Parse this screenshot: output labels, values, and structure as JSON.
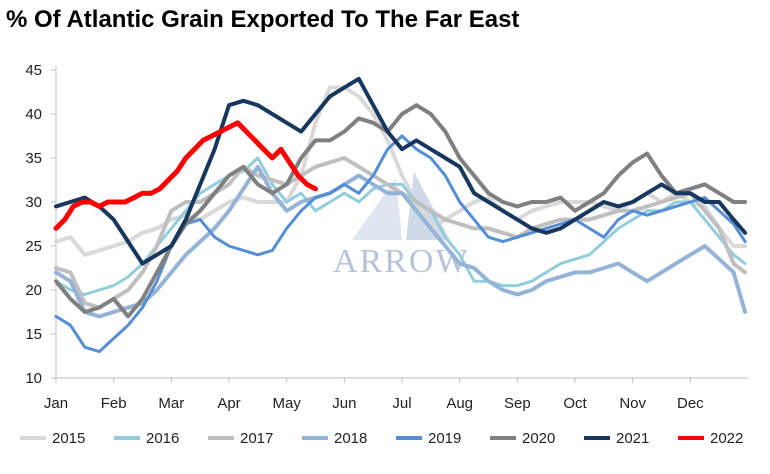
{
  "chart_data": {
    "type": "line",
    "title": "% Of Atlantic Grain Exported To The Far East",
    "xlabel": "",
    "ylabel": "",
    "categories": [
      "Jan",
      "Feb",
      "Mar",
      "Apr",
      "May",
      "Jun",
      "Jul",
      "Aug",
      "Sep",
      "Oct",
      "Nov",
      "Dec"
    ],
    "yticks": [
      10,
      15,
      20,
      25,
      30,
      35,
      40,
      45
    ],
    "ylim": [
      10,
      45
    ],
    "xlim": [
      0,
      12
    ],
    "grid": false,
    "legend_position": "bottom",
    "watermark": "ARROW",
    "series": [
      {
        "name": "2015",
        "color": "#d9d9d9",
        "width": 4,
        "x": [
          0,
          0.25,
          0.5,
          0.75,
          1,
          1.25,
          1.5,
          1.75,
          2,
          2.25,
          2.5,
          2.75,
          3,
          3.25,
          3.5,
          3.75,
          4,
          4.25,
          4.5,
          4.75,
          5,
          5.25,
          5.5,
          5.75,
          6,
          6.25,
          6.5,
          6.75,
          7,
          7.25,
          7.5,
          7.75,
          8,
          8.25,
          8.5,
          8.75,
          9,
          9.25,
          9.5,
          9.75,
          10,
          10.25,
          10.5,
          10.75,
          11,
          11.25,
          11.5,
          11.75,
          11.95
        ],
        "y": [
          25.5,
          26,
          24,
          24.5,
          25,
          25.5,
          26.5,
          27,
          28,
          28.5,
          28,
          29,
          30,
          30.5,
          30,
          30,
          30,
          33,
          39,
          43,
          43,
          42,
          40,
          37,
          33,
          30,
          27,
          28,
          29,
          30,
          30.5,
          29,
          28,
          29,
          29.5,
          30,
          30,
          30,
          29.5,
          29,
          30,
          31,
          30,
          31,
          30,
          29.5,
          27,
          25,
          25
        ]
      },
      {
        "name": "2016",
        "color": "#92cddc",
        "width": 3,
        "x": [
          0,
          0.25,
          0.5,
          0.75,
          1,
          1.25,
          1.5,
          1.75,
          2,
          2.25,
          2.5,
          2.75,
          3,
          3.25,
          3.5,
          3.75,
          4,
          4.25,
          4.5,
          4.75,
          5,
          5.25,
          5.5,
          5.75,
          6,
          6.25,
          6.5,
          6.75,
          7,
          7.25,
          7.5,
          7.75,
          8,
          8.25,
          8.5,
          8.75,
          9,
          9.25,
          9.5,
          9.75,
          10,
          10.25,
          10.5,
          10.75,
          11,
          11.25,
          11.5,
          11.75,
          11.95
        ],
        "y": [
          21,
          20,
          19.5,
          20,
          20.5,
          21.5,
          23,
          25,
          27,
          29,
          31,
          32,
          33,
          33.5,
          35,
          32,
          30,
          31,
          29,
          30,
          31,
          30,
          31.5,
          32,
          32,
          30,
          29,
          26,
          24,
          21,
          21,
          20.5,
          20.5,
          21,
          22,
          23,
          23.5,
          24,
          25.5,
          27,
          28,
          29,
          29,
          30,
          30,
          28,
          26,
          24,
          23
        ]
      },
      {
        "name": "2017",
        "color": "#bfbfbf",
        "width": 4,
        "x": [
          0,
          0.25,
          0.5,
          0.75,
          1,
          1.25,
          1.5,
          1.75,
          2,
          2.25,
          2.5,
          2.75,
          3,
          3.25,
          3.5,
          3.75,
          4,
          4.25,
          4.5,
          4.75,
          5,
          5.25,
          5.5,
          5.75,
          6,
          6.25,
          6.5,
          6.75,
          7,
          7.25,
          7.5,
          7.75,
          8,
          8.25,
          8.5,
          8.75,
          9,
          9.25,
          9.5,
          9.75,
          10,
          10.25,
          10.5,
          10.75,
          11,
          11.25,
          11.5,
          11.75,
          11.95
        ],
        "y": [
          22.5,
          22,
          18.5,
          18,
          19,
          20,
          22,
          25,
          29,
          30,
          30,
          31,
          32,
          34,
          33,
          32.5,
          32,
          33,
          34,
          34.5,
          35,
          34,
          33,
          32,
          31,
          30,
          29,
          28,
          27.5,
          27,
          27,
          26.5,
          26,
          27,
          27.5,
          28,
          28,
          28,
          28.5,
          29,
          29,
          29.5,
          30,
          30.5,
          31,
          29,
          27,
          23,
          22
        ]
      },
      {
        "name": "2018",
        "color": "#95b3d7",
        "width": 4,
        "x": [
          0,
          0.25,
          0.5,
          0.75,
          1,
          1.25,
          1.5,
          1.75,
          2,
          2.25,
          2.5,
          2.75,
          3,
          3.25,
          3.5,
          3.75,
          4,
          4.25,
          4.5,
          4.75,
          5,
          5.25,
          5.5,
          5.75,
          6,
          6.25,
          6.5,
          6.75,
          7,
          7.25,
          7.5,
          7.75,
          8,
          8.25,
          8.5,
          8.75,
          9,
          9.25,
          9.5,
          9.75,
          10,
          10.25,
          10.5,
          10.75,
          11,
          11.25,
          11.5,
          11.75,
          11.95
        ],
        "y": [
          22,
          21,
          17.5,
          17,
          17.5,
          18,
          18.5,
          20,
          22,
          24,
          25.5,
          27,
          29,
          31.5,
          34,
          31,
          29,
          30,
          30.5,
          31,
          32,
          33,
          32,
          31,
          31,
          29,
          27,
          25,
          23,
          22.5,
          21,
          20,
          19.5,
          20,
          21,
          21.5,
          22,
          22,
          22.5,
          23,
          22,
          21,
          22,
          23,
          24,
          25,
          23.5,
          22,
          17.5
        ]
      },
      {
        "name": "2019",
        "color": "#558ed5",
        "width": 3,
        "x": [
          0,
          0.25,
          0.5,
          0.75,
          1,
          1.25,
          1.5,
          1.75,
          2,
          2.25,
          2.5,
          2.75,
          3,
          3.25,
          3.5,
          3.75,
          4,
          4.25,
          4.5,
          4.75,
          5,
          5.25,
          5.5,
          5.75,
          6,
          6.25,
          6.5,
          6.75,
          7,
          7.25,
          7.5,
          7.75,
          8,
          8.25,
          8.5,
          8.75,
          9,
          9.25,
          9.5,
          9.75,
          10,
          10.25,
          10.5,
          10.75,
          11,
          11.25,
          11.5,
          11.75,
          11.95
        ],
        "y": [
          17,
          16,
          13.5,
          13,
          14.5,
          16,
          18,
          21,
          25,
          27.5,
          28,
          26,
          25,
          24.5,
          24,
          24.5,
          27,
          29,
          30.5,
          31,
          32,
          31,
          33,
          36,
          37.5,
          36,
          35,
          33,
          30,
          28,
          26,
          25.5,
          26,
          26.5,
          27,
          27.5,
          28,
          27,
          26,
          28,
          29,
          28.5,
          29,
          29.5,
          30,
          30.5,
          29,
          27.5,
          25.5
        ]
      },
      {
        "name": "2020",
        "color": "#808080",
        "width": 4,
        "x": [
          0,
          0.25,
          0.5,
          0.75,
          1,
          1.25,
          1.5,
          1.75,
          2,
          2.25,
          2.5,
          2.75,
          3,
          3.25,
          3.5,
          3.75,
          4,
          4.25,
          4.5,
          4.75,
          5,
          5.25,
          5.5,
          5.75,
          6,
          6.25,
          6.5,
          6.75,
          7,
          7.25,
          7.5,
          7.75,
          8,
          8.25,
          8.5,
          8.75,
          9,
          9.25,
          9.5,
          9.75,
          10,
          10.25,
          10.5,
          10.75,
          11,
          11.25,
          11.5,
          11.75,
          11.95
        ],
        "y": [
          21,
          19,
          17.5,
          18,
          19,
          17,
          19,
          22,
          25,
          27.5,
          29,
          31,
          33,
          34,
          32,
          31,
          32,
          35,
          37,
          37,
          38,
          39.5,
          39,
          38,
          40,
          41,
          40,
          38,
          35,
          33,
          31,
          30,
          29.5,
          30,
          30,
          30.5,
          29,
          30,
          31,
          33,
          34.5,
          35.5,
          33,
          31,
          31.5,
          32,
          31,
          30,
          30
        ]
      },
      {
        "name": "2021",
        "color": "#17375e",
        "width": 4,
        "x": [
          0,
          0.25,
          0.5,
          0.75,
          1,
          1.25,
          1.5,
          1.75,
          2,
          2.25,
          2.5,
          2.75,
          3,
          3.25,
          3.5,
          3.75,
          4,
          4.25,
          4.5,
          4.75,
          5,
          5.25,
          5.5,
          5.75,
          6,
          6.25,
          6.5,
          6.75,
          7,
          7.25,
          7.5,
          7.75,
          8,
          8.25,
          8.5,
          8.75,
          9,
          9.25,
          9.5,
          9.75,
          10,
          10.25,
          10.5,
          10.75,
          11,
          11.25,
          11.5,
          11.75,
          11.95
        ],
        "y": [
          29.5,
          30,
          30.5,
          29.5,
          28,
          25.5,
          23,
          24,
          25,
          28,
          32,
          36,
          41,
          41.5,
          41,
          40,
          39,
          38,
          40,
          42,
          43,
          44,
          41,
          38,
          36,
          37,
          36,
          35,
          34,
          31,
          30,
          29,
          28,
          27,
          26.5,
          27,
          28,
          29,
          30,
          29.5,
          30,
          31,
          32,
          31,
          31,
          30,
          30,
          28,
          26.5
        ]
      },
      {
        "name": "2022",
        "color": "#ff0000",
        "width": 5,
        "x": [
          0,
          0.15,
          0.3,
          0.45,
          0.6,
          0.75,
          0.9,
          1.05,
          1.2,
          1.35,
          1.5,
          1.65,
          1.8,
          1.95,
          2.1,
          2.25,
          2.4,
          2.55,
          2.7,
          2.85,
          3,
          3.15,
          3.3,
          3.45,
          3.6,
          3.75,
          3.9,
          4.05,
          4.2,
          4.35,
          4.5
        ],
        "y": [
          27,
          28,
          29.5,
          30,
          30,
          29.5,
          30,
          30,
          30,
          30.5,
          31,
          31,
          31.5,
          32.5,
          33.5,
          35,
          36,
          37,
          37.5,
          38,
          38.5,
          39,
          38,
          37,
          36,
          35,
          36,
          34.5,
          33,
          32,
          31.5
        ]
      }
    ]
  }
}
